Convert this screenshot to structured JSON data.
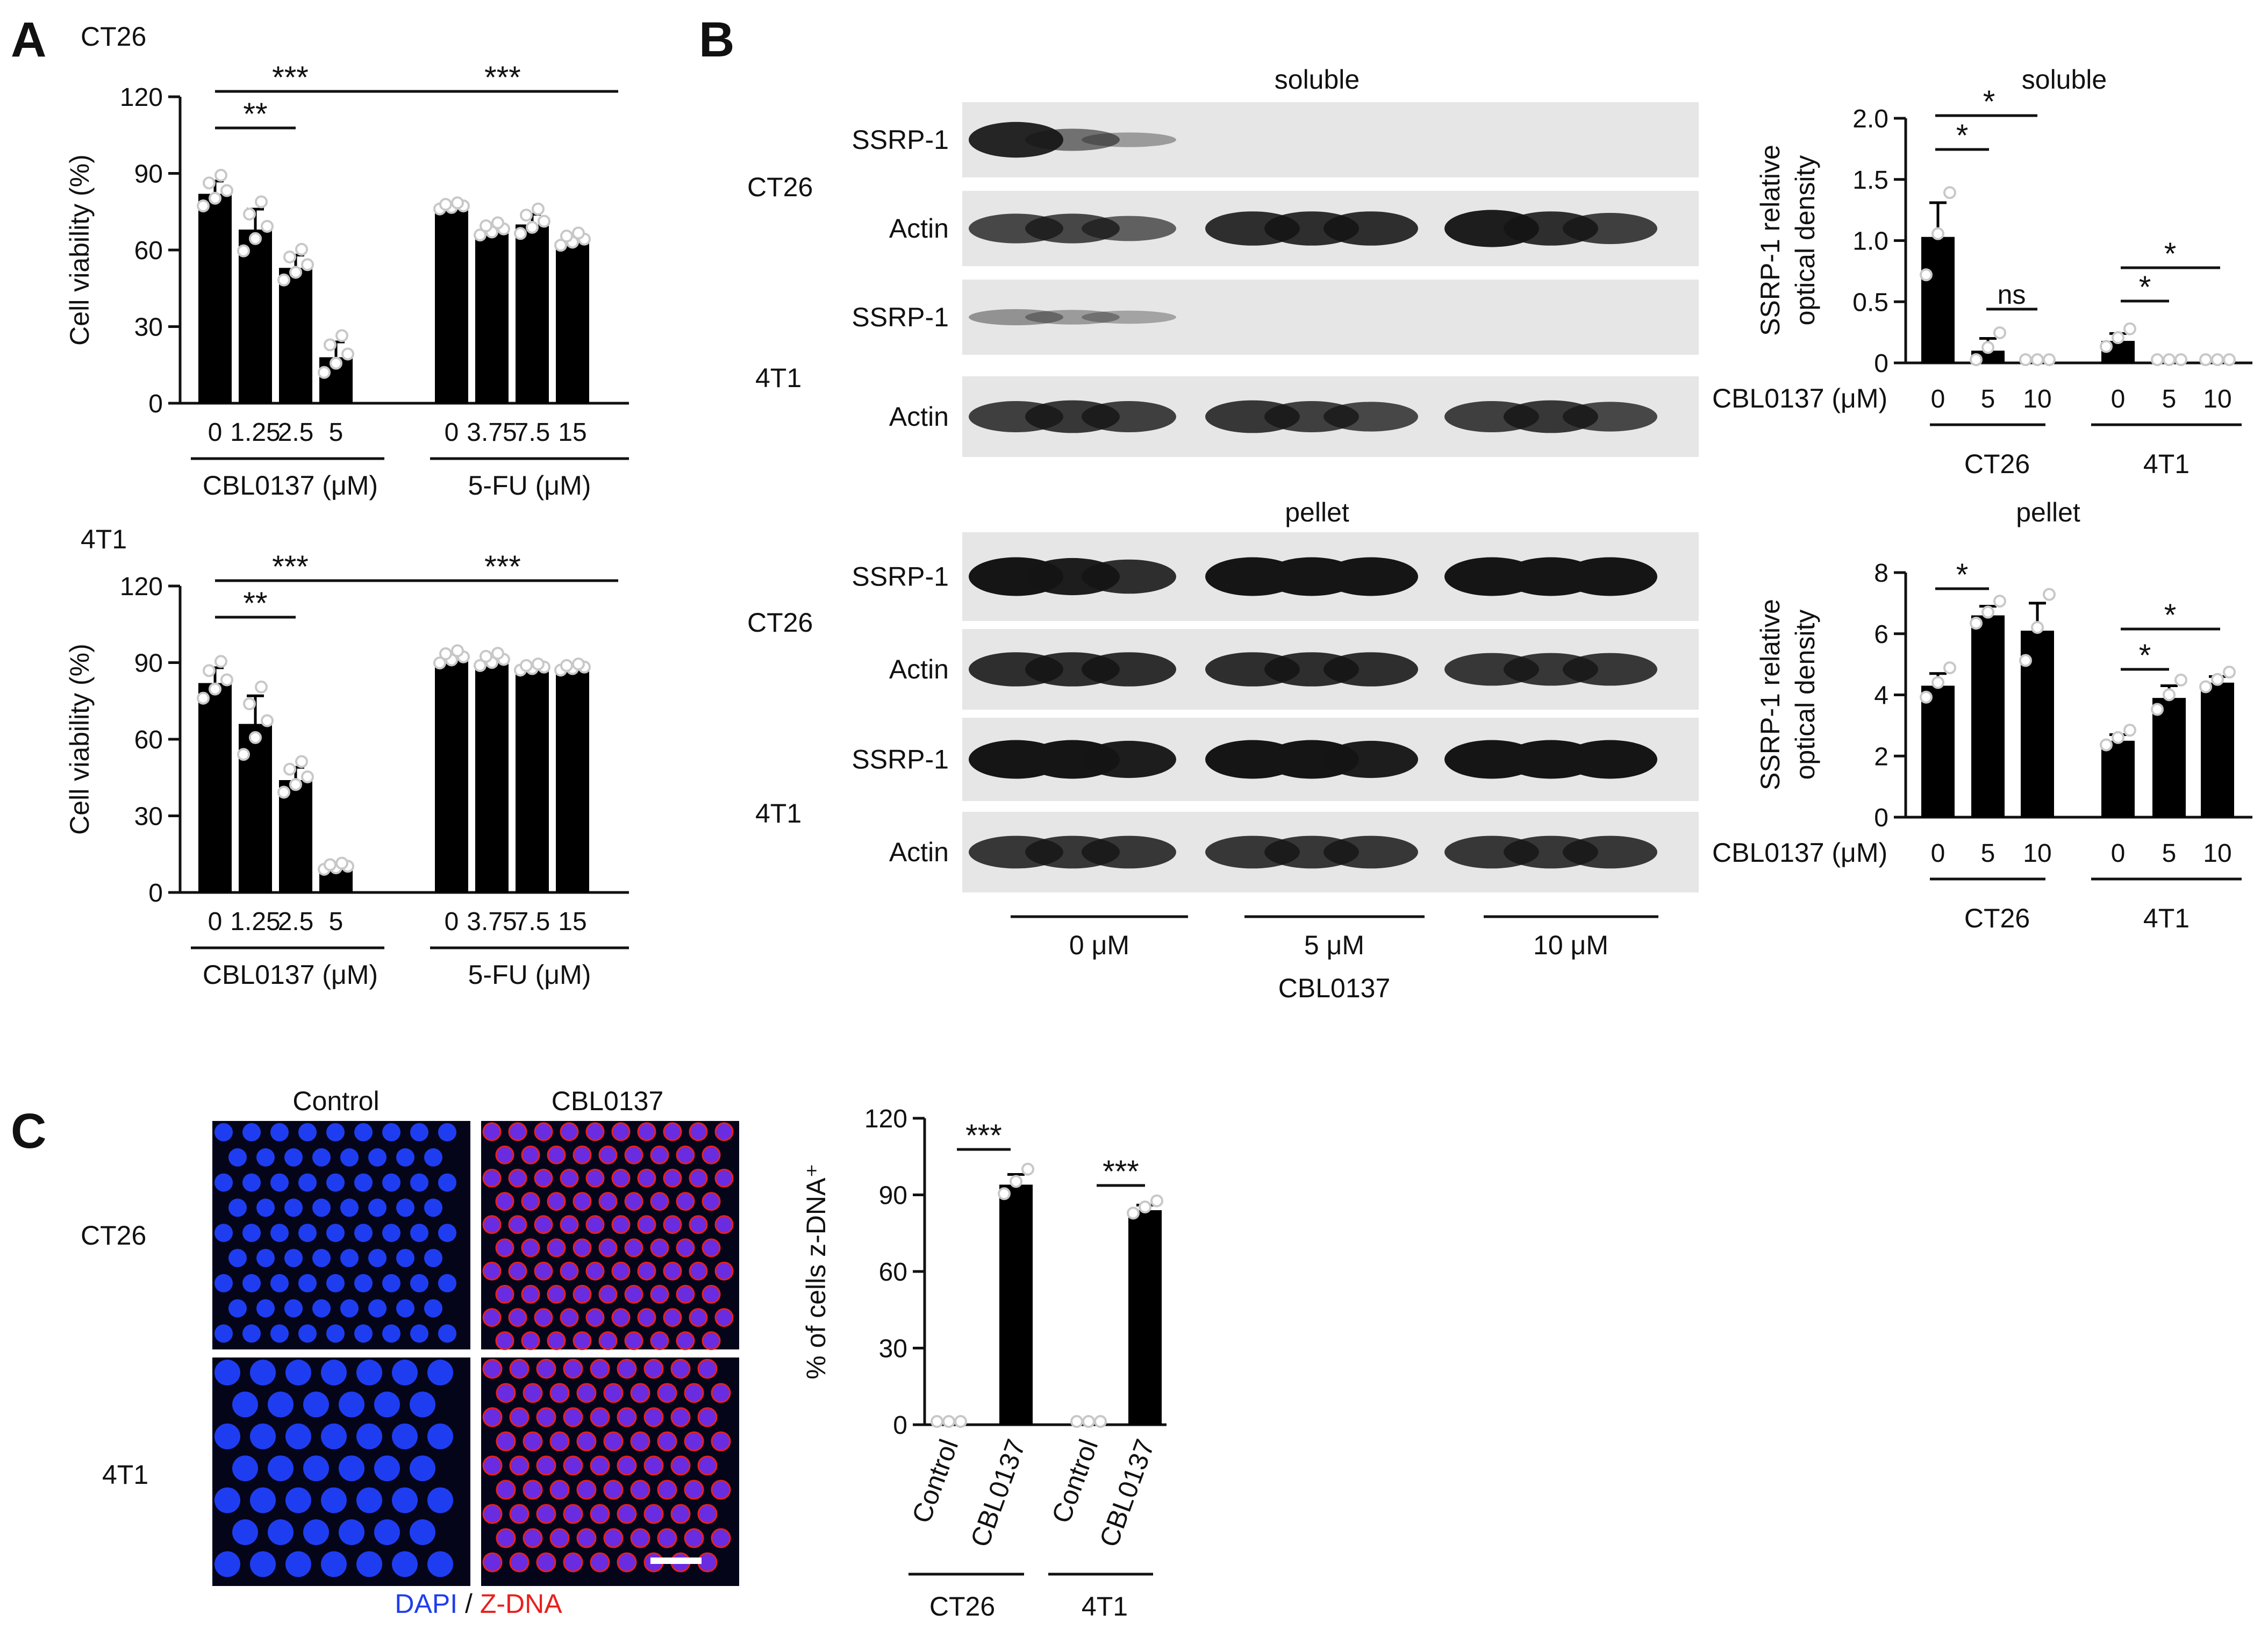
{
  "panels": {
    "A": {
      "letter": "A",
      "top": {
        "cell_line": "CT26",
        "ylabel": "Cell viability (%)",
        "yticks": [
          "0",
          "30",
          "60",
          "90",
          "120"
        ],
        "groups": [
          {
            "name": "CBL0137 (μM)",
            "ticks": [
              "0",
              "1.25",
              "2.5",
              "5"
            ]
          },
          {
            "name": "5-FU (μM)",
            "ticks": [
              "0",
              "3.75",
              "7.5",
              "15"
            ]
          }
        ],
        "sig": {
          "left_short": "**",
          "left_long": "***",
          "right_long": "***"
        }
      },
      "bottom": {
        "cell_line": "4T1",
        "ylabel": "Cell viability (%)",
        "yticks": [
          "0",
          "30",
          "60",
          "90",
          "120"
        ],
        "groups": [
          {
            "name": "CBL0137 (μM)",
            "ticks": [
              "0",
              "1.25",
              "2.5",
              "5"
            ]
          },
          {
            "name": "5-FU (μM)",
            "ticks": [
              "0",
              "3.75",
              "7.5",
              "15"
            ]
          }
        ],
        "sig": {
          "left_short": "**",
          "left_long": "***",
          "right_long": "***"
        }
      }
    },
    "B": {
      "letter": "B",
      "blot": {
        "soluble_title": "soluble",
        "pellet_title": "pellet",
        "cell_lines": [
          "CT26",
          "4T1"
        ],
        "proteins": [
          "SSRP-1",
          "Actin"
        ],
        "dose_groups": [
          "0 μM",
          "5 μM",
          "10 μM"
        ],
        "treatment": "CBL0137"
      },
      "quant_soluble": {
        "title": "soluble",
        "ylabel_line1": "SSRP-1 relative",
        "ylabel_line2": "optical density",
        "yticks": [
          "0",
          "0.5",
          "1.0",
          "1.5",
          "2.0"
        ],
        "xprefix": "CBL0137 (μM)",
        "xticks": [
          "0",
          "5",
          "10"
        ],
        "groups": [
          "CT26",
          "4T1"
        ],
        "sig": {
          "ct26_a": "*",
          "ct26_b": "*",
          "ct26_ns": "ns",
          "t41_a": "*",
          "t41_b": "*"
        }
      },
      "quant_pellet": {
        "title": "pellet",
        "ylabel_line1": "SSRP-1 relative",
        "ylabel_line2": "optical density",
        "yticks": [
          "0",
          "2",
          "4",
          "6",
          "8"
        ],
        "xprefix": "CBL0137 (μM)",
        "xticks": [
          "0",
          "5",
          "10"
        ],
        "groups": [
          "CT26",
          "4T1"
        ],
        "sig": {
          "ct26_a": "*",
          "t41_a": "*",
          "t41_b": "*"
        }
      }
    },
    "C": {
      "letter": "C",
      "micrograph": {
        "col_labels": [
          "Control",
          "CBL0137"
        ],
        "row_labels": [
          "CT26",
          "4T1"
        ],
        "legend_dapi": "DAPI",
        "legend_sep": " / ",
        "legend_zdna": "Z-DNA"
      },
      "bar": {
        "ylabel": "% of cells z-DNA⁺",
        "yticks": [
          "0",
          "30",
          "60",
          "90",
          "120"
        ],
        "xticks": [
          "Control",
          "CBL0137",
          "Control",
          "CBL0137"
        ],
        "groups": [
          "CT26",
          "4T1"
        ],
        "sig": {
          "ct26": "***",
          "t41": "***"
        }
      }
    }
  },
  "colors": {
    "dapi": "#1f3df0",
    "zdna": "#e8201c",
    "bars": "#000000",
    "dots": "#c8c8c8"
  },
  "chart_data": [
    {
      "type": "bar",
      "title": "CT26",
      "ylabel": "Cell viability (%)",
      "ylim": [
        0,
        120
      ],
      "categories": [
        "0",
        "1.25",
        "2.5",
        "5",
        "0",
        "3.75",
        "7.5",
        "15"
      ],
      "category_groups": [
        "CBL0137 (μM)",
        "CBL0137 (μM)",
        "CBL0137 (μM)",
        "CBL0137 (μM)",
        "5-FU (μM)",
        "5-FU (μM)",
        "5-FU (μM)",
        "5-FU (μM)"
      ],
      "values": [
        82,
        68,
        53,
        18,
        76,
        67,
        70,
        63
      ],
      "errors": [
        5,
        8,
        5,
        6,
        1,
        2,
        4,
        2
      ]
    },
    {
      "type": "bar",
      "title": "4T1",
      "ylabel": "Cell viability (%)",
      "ylim": [
        0,
        120
      ],
      "categories": [
        "0",
        "1.25",
        "2.5",
        "5",
        "0",
        "3.75",
        "7.5",
        "15"
      ],
      "category_groups": [
        "CBL0137 (μM)",
        "CBL0137 (μM)",
        "CBL0137 (μM)",
        "CBL0137 (μM)",
        "5-FU (μM)",
        "5-FU (μM)",
        "5-FU (μM)",
        "5-FU (μM)"
      ],
      "values": [
        82,
        66,
        44,
        9,
        91,
        90,
        87,
        87
      ],
      "errors": [
        6,
        11,
        5,
        1,
        2,
        2,
        1,
        1
      ]
    },
    {
      "type": "bar",
      "title": "soluble",
      "ylabel": "SSRP-1 relative optical density",
      "ylim": [
        0,
        2.0
      ],
      "categories": [
        "0",
        "5",
        "10",
        "0",
        "5",
        "10"
      ],
      "category_groups": [
        "CT26",
        "CT26",
        "CT26",
        "4T1",
        "4T1",
        "4T1"
      ],
      "values": [
        1.03,
        0.1,
        0.0,
        0.18,
        0.0,
        0.0
      ],
      "errors": [
        0.28,
        0.1,
        0.0,
        0.06,
        0.0,
        0.0
      ]
    },
    {
      "type": "bar",
      "title": "pellet",
      "ylabel": "SSRP-1 relative optical density",
      "ylim": [
        0,
        8
      ],
      "categories": [
        "0",
        "5",
        "10",
        "0",
        "5",
        "10"
      ],
      "category_groups": [
        "CT26",
        "CT26",
        "CT26",
        "4T1",
        "4T1",
        "4T1"
      ],
      "values": [
        4.3,
        6.6,
        6.1,
        2.5,
        3.9,
        4.4
      ],
      "errors": [
        0.4,
        0.3,
        0.9,
        0.2,
        0.4,
        0.2
      ]
    },
    {
      "type": "bar",
      "ylabel": "% of cells z-DNA⁺",
      "ylim": [
        0,
        120
      ],
      "categories": [
        "Control",
        "CBL0137",
        "Control",
        "CBL0137"
      ],
      "category_groups": [
        "CT26",
        "CT26",
        "4T1",
        "4T1"
      ],
      "values": [
        0,
        94,
        0,
        84
      ],
      "errors": [
        0,
        4,
        0,
        2
      ]
    }
  ]
}
